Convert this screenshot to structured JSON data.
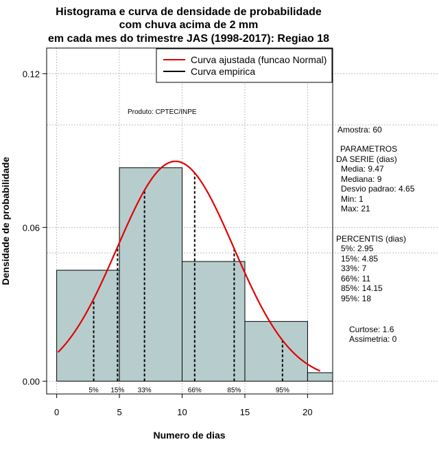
{
  "chart_data": {
    "type": "bar",
    "title": [
      "Histograma e curva de densidade de probabilidade",
      "com chuva acima de 2 mm",
      "em cada mes do trimestre JAS (1998-2017): Regiao 18"
    ],
    "xlabel": "Numero de dias",
    "ylabel": "Densidade de probabilidade",
    "xlim": [
      -0.8,
      22
    ],
    "ylim": [
      -0.005,
      0.13
    ],
    "x_ticks": [
      0,
      5,
      10,
      15,
      20
    ],
    "x_tick_labels": [
      "0",
      "5",
      "10",
      "15",
      "20"
    ],
    "y_ticks": [
      0,
      0.06,
      0.12
    ],
    "y_tick_labels": [
      "0.00",
      "0.06",
      "0.12"
    ],
    "grid_x": [
      0,
      5,
      10,
      15,
      20
    ],
    "grid_y": [
      0,
      0.06,
      0.12
    ],
    "grid_y_extra": [
      0.1,
      0.05
    ],
    "bins": [
      {
        "x0": 0,
        "x1": 5,
        "density": 0.0433
      },
      {
        "x0": 5,
        "x1": 10,
        "density": 0.0833
      },
      {
        "x0": 10,
        "x1": 15,
        "density": 0.0467
      },
      {
        "x0": 15,
        "x1": 20,
        "density": 0.0233
      },
      {
        "x0": 20,
        "x1": 22,
        "density": 0.0033
      }
    ],
    "bar_color": "#b7cdcd",
    "normal_curve": {
      "mean": 9.47,
      "sd": 4.65,
      "x_from": 0.1,
      "x_to": 21,
      "color": "#e00000"
    },
    "percentile_lines": [
      {
        "label": "5%",
        "x": 2.95
      },
      {
        "label": "15%",
        "x": 4.85
      },
      {
        "label": "33%",
        "x": 7
      },
      {
        "label": "66%",
        "x": 11
      },
      {
        "label": "85%",
        "x": 14.15
      },
      {
        "label": "95%",
        "x": 18
      }
    ],
    "legend": {
      "position": "top-right",
      "entries": [
        {
          "label": "Curva ajustada (funcao Normal)",
          "color": "#e00000"
        },
        {
          "label": "Curva empirica",
          "color": "#000000"
        }
      ]
    },
    "annotation": "Produto: CPTEC/INPE"
  },
  "side_panel": {
    "amostra": "Amostra: 60",
    "param_title_1": "PARAMETROS",
    "param_title_2": "DA SERIE (dias)",
    "params": [
      "Media: 9.47",
      "Mediana: 9",
      "Desvio padrao: 4.65",
      "Min: 1",
      "Max: 21"
    ],
    "perc_title": "PERCENTIS (dias)",
    "percentis": [
      "5%: 2.95",
      "15%: 4.85",
      "33%: 7",
      "66%: 11",
      "85%: 14.15",
      "95%: 18"
    ],
    "curtose": "Curtose: 1.6",
    "assimetria": "Assimetria: 0"
  }
}
